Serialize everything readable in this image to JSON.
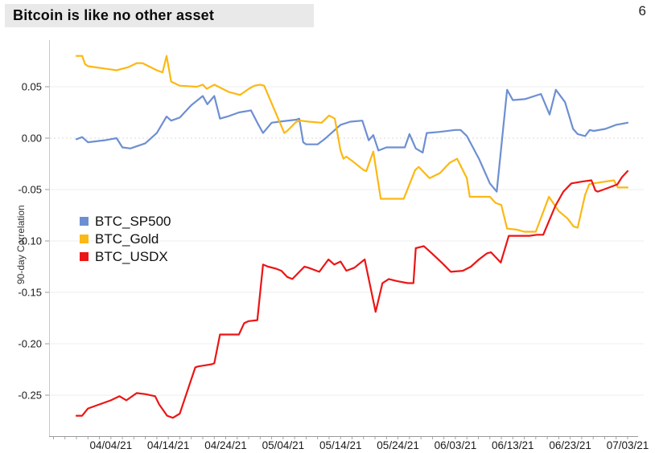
{
  "header": {
    "title": "Bitcoin is like no other asset",
    "page_number": "6"
  },
  "chart_data": {
    "type": "line",
    "title": "",
    "xlabel": "",
    "ylabel": "90-day Correlation",
    "grid": "horizontal",
    "legend_position": "inside-left",
    "y_axis_range": [
      -0.29,
      0.09
    ],
    "x_axis_note": "x values are day offsets; day 6 = 04/04/21, 10 days per major tick",
    "x_domain_days": [
      0,
      96
    ],
    "x_ticks": [
      {
        "day": 6,
        "label": "04/04/21"
      },
      {
        "day": 16,
        "label": "04/14/21"
      },
      {
        "day": 26,
        "label": "04/24/21"
      },
      {
        "day": 36,
        "label": "05/04/21"
      },
      {
        "day": 46,
        "label": "05/14/21"
      },
      {
        "day": 56,
        "label": "05/24/21"
      },
      {
        "day": 66,
        "label": "06/03/21"
      },
      {
        "day": 76,
        "label": "06/13/21"
      },
      {
        "day": 86,
        "label": "06/23/21"
      },
      {
        "day": 96,
        "label": "07/03/21"
      }
    ],
    "y_ticks": [
      {
        "value": 0.05,
        "label": "0.05"
      },
      {
        "value": 0.0,
        "label": "0.00"
      },
      {
        "value": -0.05,
        "label": "-0.05"
      },
      {
        "value": -0.1,
        "label": "-0.10"
      },
      {
        "value": -0.15,
        "label": "-0.15"
      },
      {
        "value": -0.2,
        "label": "-0.20"
      },
      {
        "value": -0.25,
        "label": "-0.25"
      }
    ],
    "series": [
      {
        "name": "BTC_SP500",
        "color": "#6d8fd2",
        "points": [
          [
            0,
            -0.001
          ],
          [
            1,
            0.001
          ],
          [
            2,
            -0.004
          ],
          [
            5,
            -0.002
          ],
          [
            7,
            0.0
          ],
          [
            8,
            -0.009
          ],
          [
            9.4,
            -0.01
          ],
          [
            12,
            -0.005
          ],
          [
            14,
            0.005
          ],
          [
            15.7,
            0.021
          ],
          [
            16.5,
            0.017
          ],
          [
            18,
            0.02
          ],
          [
            20,
            0.032
          ],
          [
            22,
            0.041
          ],
          [
            22.8,
            0.033
          ],
          [
            24,
            0.041
          ],
          [
            25,
            0.019
          ],
          [
            26.3,
            0.021
          ],
          [
            28.3,
            0.025
          ],
          [
            30.4,
            0.027
          ],
          [
            31.5,
            0.015
          ],
          [
            32.5,
            0.005
          ],
          [
            34,
            0.015
          ],
          [
            35.3,
            0.016
          ],
          [
            38.3,
            0.018
          ],
          [
            38.8,
            0.019
          ],
          [
            39.5,
            -0.004
          ],
          [
            40,
            -0.006
          ],
          [
            42,
            -0.006
          ],
          [
            43.2,
            -0.001
          ],
          [
            44,
            0.003
          ],
          [
            46,
            0.013
          ],
          [
            47.7,
            0.016
          ],
          [
            49.8,
            0.017
          ],
          [
            50.9,
            -0.002
          ],
          [
            51.7,
            0.003
          ],
          [
            52.6,
            -0.012
          ],
          [
            54,
            -0.009
          ],
          [
            57.2,
            -0.009
          ],
          [
            58,
            0.004
          ],
          [
            59.1,
            -0.01
          ],
          [
            60.3,
            -0.014
          ],
          [
            61,
            0.005
          ],
          [
            63.1,
            0.006
          ],
          [
            66,
            0.008
          ],
          [
            66.9,
            0.008
          ],
          [
            68,
            0.002
          ],
          [
            70.1,
            -0.02
          ],
          [
            72,
            -0.044
          ],
          [
            73.2,
            -0.052
          ],
          [
            75,
            0.047
          ],
          [
            76,
            0.037
          ],
          [
            78.1,
            0.038
          ],
          [
            80.9,
            0.043
          ],
          [
            82.4,
            0.023
          ],
          [
            83.5,
            0.047
          ],
          [
            85.1,
            0.035
          ],
          [
            86.5,
            0.009
          ],
          [
            87.3,
            0.004
          ],
          [
            88.6,
            0.002
          ],
          [
            89.4,
            0.008
          ],
          [
            90.1,
            0.007
          ],
          [
            92.1,
            0.009
          ],
          [
            94,
            0.013
          ],
          [
            96,
            0.015
          ]
        ]
      },
      {
        "name": "BTC_Gold",
        "color": "#fcb813",
        "points": [
          [
            0,
            0.08
          ],
          [
            1,
            0.08
          ],
          [
            1.5,
            0.072
          ],
          [
            2,
            0.07
          ],
          [
            7,
            0.066
          ],
          [
            9,
            0.069
          ],
          [
            10.5,
            0.073
          ],
          [
            11.5,
            0.073
          ],
          [
            14,
            0.066
          ],
          [
            15,
            0.064
          ],
          [
            15.7,
            0.08
          ],
          [
            16.5,
            0.055
          ],
          [
            18,
            0.051
          ],
          [
            21,
            0.05
          ],
          [
            22,
            0.052
          ],
          [
            22.7,
            0.048
          ],
          [
            24,
            0.052
          ],
          [
            26.5,
            0.045
          ],
          [
            28.5,
            0.042
          ],
          [
            30,
            0.048
          ],
          [
            31,
            0.051
          ],
          [
            32,
            0.052
          ],
          [
            32.7,
            0.051
          ],
          [
            36.2,
            0.005
          ],
          [
            36.7,
            0.007
          ],
          [
            38.3,
            0.016
          ],
          [
            39,
            0.017
          ],
          [
            40.5,
            0.016
          ],
          [
            42.7,
            0.015
          ],
          [
            44,
            0.022
          ],
          [
            45,
            0.019
          ],
          [
            46,
            -0.012
          ],
          [
            46.5,
            -0.02
          ],
          [
            47,
            -0.018
          ],
          [
            48,
            -0.022
          ],
          [
            50,
            -0.031
          ],
          [
            50.5,
            -0.032
          ],
          [
            51.7,
            -0.013
          ],
          [
            53,
            -0.059
          ],
          [
            54,
            -0.059
          ],
          [
            57,
            -0.059
          ],
          [
            59,
            -0.031
          ],
          [
            59.6,
            -0.028
          ],
          [
            61.5,
            -0.039
          ],
          [
            63.3,
            -0.034
          ],
          [
            65,
            -0.024
          ],
          [
            66.3,
            -0.02
          ],
          [
            68,
            -0.039
          ],
          [
            68.5,
            -0.057
          ],
          [
            71,
            -0.057
          ],
          [
            72,
            -0.057
          ],
          [
            73,
            -0.063
          ],
          [
            74,
            -0.065
          ],
          [
            75,
            -0.088
          ],
          [
            76.7,
            -0.089
          ],
          [
            78,
            -0.091
          ],
          [
            80,
            -0.091
          ],
          [
            82.3,
            -0.057
          ],
          [
            84,
            -0.071
          ],
          [
            85.5,
            -0.078
          ],
          [
            86.6,
            -0.086
          ],
          [
            87.3,
            -0.087
          ],
          [
            88.6,
            -0.055
          ],
          [
            89.3,
            -0.045
          ],
          [
            90,
            -0.044
          ],
          [
            93.6,
            -0.041
          ],
          [
            94.3,
            -0.048
          ],
          [
            96,
            -0.048
          ]
        ]
      },
      {
        "name": "BTC_USDX",
        "color": "#ec1515",
        "points": [
          [
            0,
            -0.27
          ],
          [
            1,
            -0.27
          ],
          [
            2,
            -0.263
          ],
          [
            4,
            -0.259
          ],
          [
            6,
            -0.255
          ],
          [
            7.5,
            -0.251
          ],
          [
            8.7,
            -0.255
          ],
          [
            10.5,
            -0.248
          ],
          [
            12,
            -0.249
          ],
          [
            13.7,
            -0.251
          ],
          [
            14.4,
            -0.259
          ],
          [
            15.8,
            -0.27
          ],
          [
            16.8,
            -0.272
          ],
          [
            18,
            -0.268
          ],
          [
            20.7,
            -0.223
          ],
          [
            21.2,
            -0.222
          ],
          [
            23.5,
            -0.22
          ],
          [
            24,
            -0.219
          ],
          [
            25,
            -0.191
          ],
          [
            28.3,
            -0.191
          ],
          [
            29.2,
            -0.18
          ],
          [
            30,
            -0.178
          ],
          [
            31.5,
            -0.177
          ],
          [
            32.5,
            -0.123
          ],
          [
            33.4,
            -0.125
          ],
          [
            34.8,
            -0.127
          ],
          [
            35.7,
            -0.129
          ],
          [
            36.7,
            -0.135
          ],
          [
            37.6,
            -0.137
          ],
          [
            39.7,
            -0.125
          ],
          [
            40.4,
            -0.126
          ],
          [
            42.3,
            -0.13
          ],
          [
            43.9,
            -0.118
          ],
          [
            44.9,
            -0.123
          ],
          [
            46,
            -0.12
          ],
          [
            47,
            -0.129
          ],
          [
            48.4,
            -0.126
          ],
          [
            50.2,
            -0.118
          ],
          [
            52.1,
            -0.169
          ],
          [
            53.3,
            -0.141
          ],
          [
            54.4,
            -0.137
          ],
          [
            55.8,
            -0.139
          ],
          [
            57.7,
            -0.141
          ],
          [
            58.7,
            -0.141
          ],
          [
            59.1,
            -0.107
          ],
          [
            60.5,
            -0.105
          ],
          [
            61.9,
            -0.112
          ],
          [
            63.8,
            -0.122
          ],
          [
            65.2,
            -0.13
          ],
          [
            67.3,
            -0.129
          ],
          [
            68.7,
            -0.125
          ],
          [
            70.1,
            -0.118
          ],
          [
            71.5,
            -0.112
          ],
          [
            72.2,
            -0.111
          ],
          [
            73.9,
            -0.121
          ],
          [
            75.3,
            -0.095
          ],
          [
            78.9,
            -0.095
          ],
          [
            80.2,
            -0.094
          ],
          [
            81.3,
            -0.094
          ],
          [
            83.4,
            -0.066
          ],
          [
            84.8,
            -0.052
          ],
          [
            86.2,
            -0.044
          ],
          [
            88.3,
            -0.042
          ],
          [
            89.7,
            -0.041
          ],
          [
            90.4,
            -0.051
          ],
          [
            90.8,
            -0.052
          ],
          [
            92.8,
            -0.048
          ],
          [
            94.2,
            -0.045
          ],
          [
            95,
            -0.038
          ],
          [
            96,
            -0.032
          ]
        ]
      }
    ]
  }
}
